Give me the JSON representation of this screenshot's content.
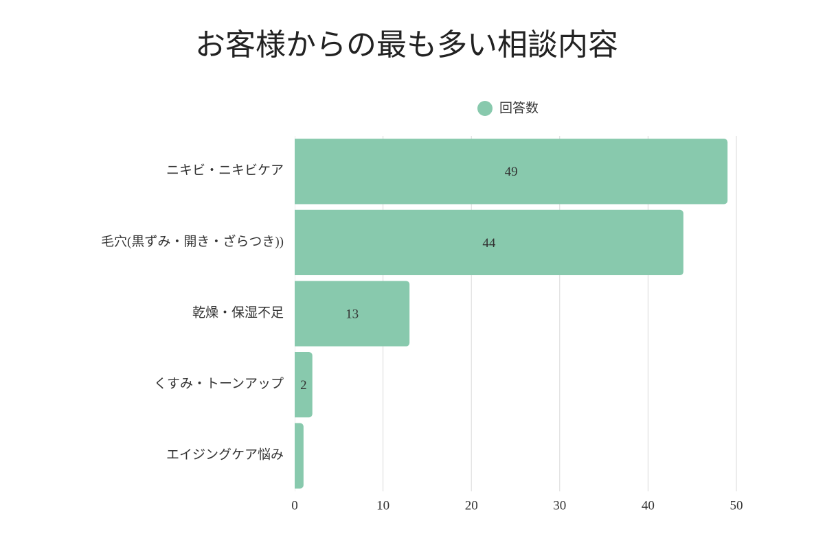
{
  "chart_data": {
    "type": "bar",
    "orientation": "horizontal",
    "title": "お客様からの最も多い相談内容",
    "categories": [
      "ニキビ・ニキビケア",
      "毛穴(黒ずみ・開き・ざらつき))",
      "乾燥・保湿不足",
      "くすみ・トーンアップ",
      "エイジングケア悩み"
    ],
    "series": [
      {
        "name": "回答数",
        "color": "#88c9ad",
        "values": [
          49,
          44,
          13,
          2,
          1
        ],
        "value_labels": [
          49,
          44,
          13,
          2,
          null
        ]
      }
    ],
    "xlim": [
      0,
      50
    ],
    "xticks": [
      0,
      10,
      20,
      30,
      40,
      50
    ],
    "grid": true,
    "legend": "top"
  }
}
